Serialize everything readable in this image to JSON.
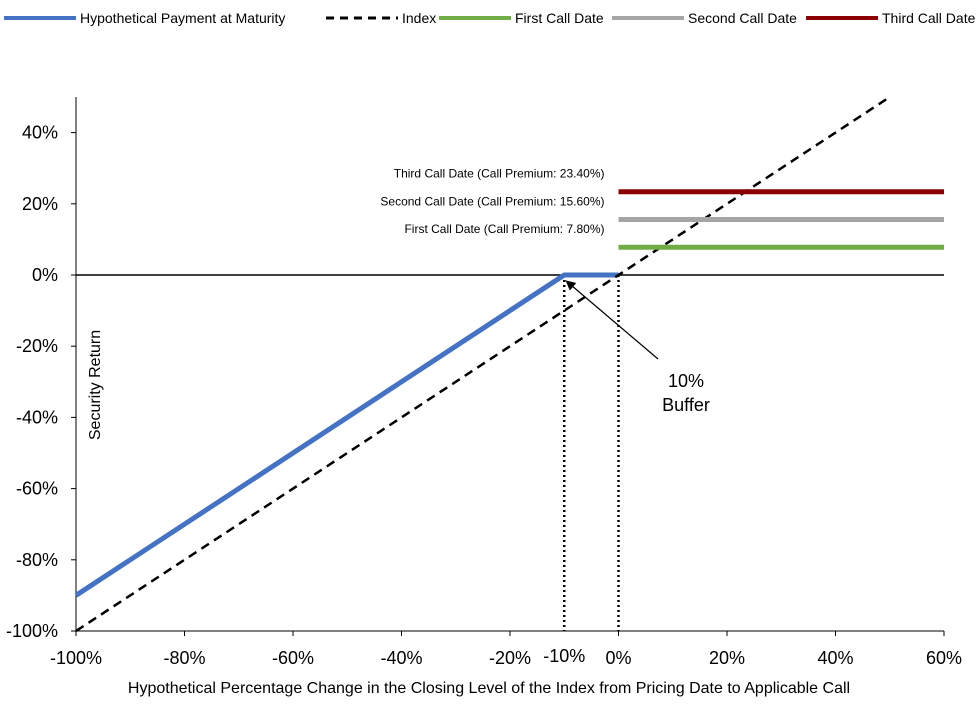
{
  "chart_data": {
    "type": "line",
    "xlabel": "Hypothetical Percentage Change in the Closing Level of the Index from Pricing Date to Applicable Call",
    "ylabel": "Security Return",
    "xlim": [
      -100,
      60
    ],
    "ylim": [
      -100,
      50
    ],
    "x_ticks": [
      "-100%",
      "-80%",
      "-60%",
      "-40%",
      "-20%",
      "0%",
      "20%",
      "40%",
      "60%"
    ],
    "x_tick_values": [
      -100,
      -80,
      -60,
      -40,
      -20,
      0,
      20,
      40,
      60
    ],
    "y_ticks": [
      "40%",
      "20%",
      "0%",
      "-20%",
      "-40%",
      "-60%",
      "-80%",
      "-100%"
    ],
    "y_tick_values": [
      40,
      20,
      0,
      -20,
      -40,
      -60,
      -80,
      -100
    ],
    "extra_x_tick": {
      "label": "-10%",
      "value": -10
    },
    "legend_placement": "top",
    "legend": [
      {
        "label": "Hypothetical Payment at Maturity",
        "color": "#4472C4",
        "style": "solid"
      },
      {
        "label": "Index",
        "color": "#000000",
        "style": "dashed"
      },
      {
        "label": "First Call Date",
        "color": "#70AD47",
        "style": "solid"
      },
      {
        "label": "Second Call Date",
        "color": "#A5A5A5",
        "style": "solid"
      },
      {
        "label": "Third Call Date",
        "color": "#8B0000",
        "style": "solid"
      }
    ],
    "series": [
      {
        "name": "Hypothetical Payment at Maturity",
        "color": "#4472C4",
        "x": [
          -100,
          -10,
          0
        ],
        "y": [
          -90,
          0,
          0
        ]
      },
      {
        "name": "Index",
        "color": "#000000",
        "x": [
          -100,
          50
        ],
        "y": [
          -100,
          50
        ]
      },
      {
        "name": "First Call Date",
        "color": "#70AD47",
        "x": [
          0,
          60
        ],
        "y": [
          7.8,
          7.8
        ]
      },
      {
        "name": "Second Call Date",
        "color": "#A5A5A5",
        "x": [
          0,
          60
        ],
        "y": [
          15.6,
          15.6
        ]
      },
      {
        "name": "Third Call Date",
        "color": "#8B0000",
        "x": [
          0,
          60
        ],
        "y": [
          23.4,
          23.4
        ]
      }
    ],
    "call_labels": [
      {
        "text": "First Call Date (Call Premium: 7.80%)",
        "y": 7.8
      },
      {
        "text": "Second Call Date (Call Premium: 15.60%)",
        "y": 15.6
      },
      {
        "text": "Third Call Date (Call Premium: 23.40%)",
        "y": 23.4
      }
    ],
    "annotation": {
      "lines": [
        "10%",
        "Buffer"
      ],
      "points_to": {
        "x": -10,
        "y": 0
      }
    },
    "reference_lines_x": [
      -10,
      0
    ]
  }
}
